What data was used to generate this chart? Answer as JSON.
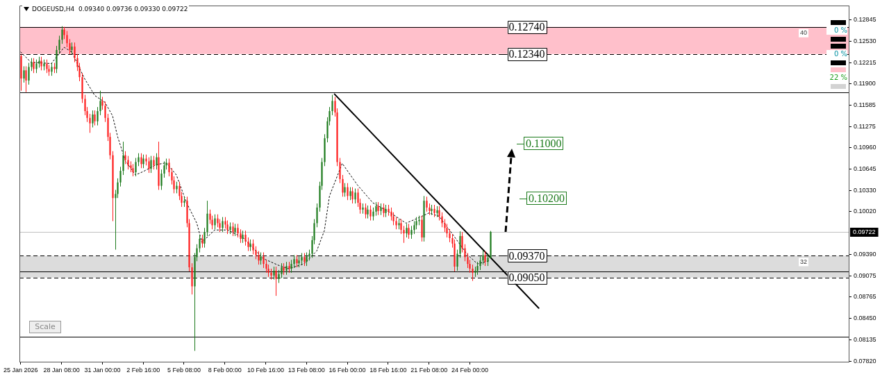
{
  "chart_data": {
    "type": "candlestick",
    "title": "DOGEUSD,H4  0.09340 0.09736 0.09330 0.09722",
    "x": [
      "2026-01-25T16:00",
      "2026-01-25T20:00",
      "2026-01-26T00:00",
      "2026-01-26T04:00",
      "2026-01-26T08:00",
      "2026-01-26T12:00",
      "2026-01-26T16:00",
      "2026-01-26T20:00",
      "2026-01-27T00:00",
      "2026-01-27T04:00",
      "2026-01-27T08:00",
      "2026-01-27T12:00",
      "2026-01-27T16:00",
      "2026-01-27T20:00",
      "2026-01-28T00:00",
      "2026-01-28T04:00",
      "2026-01-28T08:00",
      "2026-01-28T12:00",
      "2026-01-28T16:00",
      "2026-01-28T20:00",
      "2026-01-29T00:00",
      "2026-01-29T04:00",
      "2026-01-29T08:00",
      "2026-01-29T12:00",
      "2026-01-29T16:00",
      "2026-01-29T20:00",
      "2026-01-30T00:00",
      "2026-01-30T04:00",
      "2026-01-30T08:00",
      "2026-01-30T12:00",
      "2026-01-30T16:00",
      "2026-01-30T20:00",
      "2026-01-31T00:00",
      "2026-01-31T04:00",
      "2026-01-31T08:00",
      "2026-01-31T12:00",
      "2026-01-31T16:00",
      "2026-01-31T20:00",
      "2026-02-01T00:00",
      "2026-02-01T04:00",
      "2026-02-01T08:00",
      "2026-02-01T12:00",
      "2026-02-01T16:00",
      "2026-02-01T20:00",
      "2026-02-02T00:00",
      "2026-02-02T04:00",
      "2026-02-02T08:00",
      "2026-02-02T12:00",
      "2026-02-02T16:00",
      "2026-02-02T20:00",
      "2026-02-03T00:00",
      "2026-02-03T04:00",
      "2026-02-03T08:00",
      "2026-02-03T12:00",
      "2026-02-03T16:00",
      "2026-02-03T20:00",
      "2026-02-04T00:00",
      "2026-02-04T04:00",
      "2026-02-04T08:00",
      "2026-02-04T12:00",
      "2026-02-04T16:00",
      "2026-02-04T20:00",
      "2026-02-05T00:00",
      "2026-02-05T04:00",
      "2026-02-05T08:00",
      "2026-02-05T12:00",
      "2026-02-05T16:00",
      "2026-02-05T20:00",
      "2026-02-06T00:00",
      "2026-02-06T04:00",
      "2026-02-06T08:00",
      "2026-02-06T12:00",
      "2026-02-06T16:00",
      "2026-02-06T20:00",
      "2026-02-07T00:00",
      "2026-02-07T04:00",
      "2026-02-07T08:00",
      "2026-02-07T12:00",
      "2026-02-07T16:00",
      "2026-02-07T20:00",
      "2026-02-08T00:00",
      "2026-02-08T04:00",
      "2026-02-08T08:00",
      "2026-02-08T12:00",
      "2026-02-08T16:00",
      "2026-02-08T20:00",
      "2026-02-09T00:00",
      "2026-02-09T04:00",
      "2026-02-09T08:00",
      "2026-02-09T12:00",
      "2026-02-09T16:00",
      "2026-02-09T20:00",
      "2026-02-10T00:00",
      "2026-02-10T04:00",
      "2026-02-10T08:00",
      "2026-02-10T12:00",
      "2026-02-10T16:00",
      "2026-02-10T20:00",
      "2026-02-11T00:00",
      "2026-02-11T04:00",
      "2026-02-11T08:00",
      "2026-02-11T12:00",
      "2026-02-11T16:00",
      "2026-02-11T20:00",
      "2026-02-12T00:00",
      "2026-02-12T04:00",
      "2026-02-12T08:00",
      "2026-02-12T12:00",
      "2026-02-12T16:00",
      "2026-02-12T20:00",
      "2026-02-13T00:00",
      "2026-02-13T04:00",
      "2026-02-13T08:00",
      "2026-02-13T12:00",
      "2026-02-13T16:00",
      "2026-02-13T20:00",
      "2026-02-14T00:00",
      "2026-02-14T04:00",
      "2026-02-14T08:00",
      "2026-02-14T12:00",
      "2026-02-14T16:00",
      "2026-02-14T20:00",
      "2026-02-15T00:00",
      "2026-02-15T04:00",
      "2026-02-15T08:00",
      "2026-02-15T12:00",
      "2026-02-15T16:00",
      "2026-02-15T20:00",
      "2026-02-16T00:00",
      "2026-02-16T04:00",
      "2026-02-16T08:00",
      "2026-02-16T12:00",
      "2026-02-16T16:00",
      "2026-02-16T20:00",
      "2026-02-17T00:00",
      "2026-02-17T04:00",
      "2026-02-17T08:00",
      "2026-02-17T12:00",
      "2026-02-17T16:00",
      "2026-02-17T20:00",
      "2026-02-18T00:00",
      "2026-02-18T04:00",
      "2026-02-18T08:00",
      "2026-02-18T12:00",
      "2026-02-18T16:00",
      "2026-02-18T20:00",
      "2026-02-19T00:00",
      "2026-02-19T04:00",
      "2026-02-19T08:00",
      "2026-02-19T12:00",
      "2026-02-19T16:00",
      "2026-02-19T20:00",
      "2026-02-20T00:00",
      "2026-02-20T04:00",
      "2026-02-20T08:00",
      "2026-02-20T12:00",
      "2026-02-20T16:00",
      "2026-02-20T20:00",
      "2026-02-21T00:00",
      "2026-02-21T04:00",
      "2026-02-21T08:00",
      "2026-02-21T12:00",
      "2026-02-21T16:00",
      "2026-02-21T20:00",
      "2026-02-22T00:00",
      "2026-02-22T04:00",
      "2026-02-22T08:00",
      "2026-02-22T12:00",
      "2026-02-22T16:00",
      "2026-02-22T20:00",
      "2026-02-23T00:00",
      "2026-02-23T04:00",
      "2026-02-23T08:00",
      "2026-02-23T12:00",
      "2026-02-23T16:00",
      "2026-02-23T20:00",
      "2026-02-24T00:00",
      "2026-02-24T04:00",
      "2026-02-24T08:00",
      "2026-02-24T12:00",
      "2026-02-24T16:00",
      "2026-02-24T20:00",
      "2026-02-25T00:00",
      "2026-02-25T04:00",
      "2026-02-25T08:00"
    ],
    "ohlc": [
      [
        0.1231,
        0.1233,
        0.118,
        0.1198
      ],
      [
        0.1198,
        0.1216,
        0.1192,
        0.121
      ],
      [
        0.121,
        0.1216,
        0.1178,
        0.1195
      ],
      [
        0.1195,
        0.1221,
        0.1189,
        0.1215
      ],
      [
        0.1215,
        0.1228,
        0.1209,
        0.1222
      ],
      [
        0.1222,
        0.1228,
        0.1206,
        0.1212
      ],
      [
        0.1212,
        0.1226,
        0.1206,
        0.122
      ],
      [
        0.122,
        0.123,
        0.1214,
        0.1224
      ],
      [
        0.1224,
        0.123,
        0.121,
        0.1216
      ],
      [
        0.1216,
        0.1226,
        0.121,
        0.122
      ],
      [
        0.122,
        0.1226,
        0.1206,
        0.1212
      ],
      [
        0.1212,
        0.1218,
        0.1202,
        0.1208
      ],
      [
        0.1208,
        0.1221,
        0.1202,
        0.1215
      ],
      [
        0.1215,
        0.1221,
        0.1206,
        0.1212
      ],
      [
        0.1212,
        0.1246,
        0.1206,
        0.124
      ],
      [
        0.124,
        0.1261,
        0.1234,
        0.1255
      ],
      [
        0.1255,
        0.1275,
        0.1249,
        0.127
      ],
      [
        0.127,
        0.1274,
        0.1256,
        0.1262
      ],
      [
        0.1262,
        0.1268,
        0.1244,
        0.125
      ],
      [
        0.125,
        0.1256,
        0.1234,
        0.124
      ],
      [
        0.124,
        0.1251,
        0.1234,
        0.1245
      ],
      [
        0.1245,
        0.1251,
        0.1222,
        0.1228
      ],
      [
        0.1228,
        0.1234,
        0.1209,
        0.1215
      ],
      [
        0.1215,
        0.1221,
        0.1194,
        0.12
      ],
      [
        0.12,
        0.1206,
        0.1162,
        0.1168
      ],
      [
        0.1168,
        0.1174,
        0.1144,
        0.115
      ],
      [
        0.115,
        0.1156,
        0.1134,
        0.114
      ],
      [
        0.114,
        0.1146,
        0.1118,
        0.1132
      ],
      [
        0.1132,
        0.1151,
        0.1126,
        0.1145
      ],
      [
        0.1145,
        0.1151,
        0.1129,
        0.1135
      ],
      [
        0.1135,
        0.1156,
        0.1129,
        0.115
      ],
      [
        0.115,
        0.118,
        0.1144,
        0.1165
      ],
      [
        0.1165,
        0.1171,
        0.1152,
        0.1158
      ],
      [
        0.1158,
        0.1164,
        0.1134,
        0.114
      ],
      [
        0.114,
        0.1146,
        0.1106,
        0.1112
      ],
      [
        0.1112,
        0.1118,
        0.1079,
        0.1085
      ],
      [
        0.1085,
        0.1091,
        0.0988,
        0.1022
      ],
      [
        0.1022,
        0.1034,
        0.0946,
        0.1028
      ],
      [
        0.1028,
        0.1051,
        0.1022,
        0.1045
      ],
      [
        0.1045,
        0.1068,
        0.1039,
        0.1062
      ],
      [
        0.1062,
        0.1105,
        0.1056,
        0.1085
      ],
      [
        0.1085,
        0.1091,
        0.1072,
        0.1078
      ],
      [
        0.1078,
        0.1084,
        0.1064,
        0.107
      ],
      [
        0.107,
        0.1076,
        0.106,
        0.1066
      ],
      [
        0.1066,
        0.1072,
        0.1054,
        0.106
      ],
      [
        0.106,
        0.1081,
        0.1054,
        0.1075
      ],
      [
        0.1075,
        0.1088,
        0.1069,
        0.1082
      ],
      [
        0.1082,
        0.1088,
        0.1066,
        0.1072
      ],
      [
        0.1072,
        0.1086,
        0.1066,
        0.108
      ],
      [
        0.108,
        0.1086,
        0.107,
        0.1076
      ],
      [
        0.1076,
        0.1082,
        0.1059,
        0.1065
      ],
      [
        0.1065,
        0.1084,
        0.1059,
        0.1078
      ],
      [
        0.1078,
        0.1084,
        0.1064,
        0.107
      ],
      [
        0.107,
        0.1088,
        0.1064,
        0.1082
      ],
      [
        0.1082,
        0.1105,
        0.1034,
        0.104
      ],
      [
        0.104,
        0.1064,
        0.1034,
        0.1058
      ],
      [
        0.1058,
        0.1076,
        0.1052,
        0.107
      ],
      [
        0.107,
        0.108,
        0.1064,
        0.1074
      ],
      [
        0.1074,
        0.108,
        0.1054,
        0.106
      ],
      [
        0.106,
        0.1066,
        0.1042,
        0.1048
      ],
      [
        0.1048,
        0.1054,
        0.1029,
        0.1035
      ],
      [
        0.1035,
        0.1046,
        0.1029,
        0.104
      ],
      [
        0.104,
        0.1046,
        0.1019,
        0.1025
      ],
      [
        0.1025,
        0.1031,
        0.1009,
        0.1015
      ],
      [
        0.1015,
        0.1024,
        0.1009,
        0.1018
      ],
      [
        0.1018,
        0.1024,
        0.0979,
        0.0985
      ],
      [
        0.0985,
        0.0991,
        0.0914,
        0.092
      ],
      [
        0.092,
        0.0926,
        0.088,
        0.0892
      ],
      [
        0.0892,
        0.0941,
        0.0797,
        0.0935
      ],
      [
        0.0935,
        0.0954,
        0.0929,
        0.0948
      ],
      [
        0.0948,
        0.0968,
        0.0942,
        0.0962
      ],
      [
        0.0962,
        0.0968,
        0.0949,
        0.0955
      ],
      [
        0.0955,
        0.0978,
        0.0949,
        0.0972
      ],
      [
        0.0972,
        0.1018,
        0.0966,
        0.0999
      ],
      [
        0.0999,
        0.1005,
        0.0984,
        0.099
      ],
      [
        0.099,
        0.0996,
        0.0976,
        0.0982
      ],
      [
        0.0982,
        0.0998,
        0.0976,
        0.0992
      ],
      [
        0.0992,
        0.0998,
        0.0979,
        0.0985
      ],
      [
        0.0985,
        0.0991,
        0.0972,
        0.0978
      ],
      [
        0.0978,
        0.0994,
        0.0972,
        0.0988
      ],
      [
        0.0988,
        0.0994,
        0.0977,
        0.0983
      ],
      [
        0.0983,
        0.0989,
        0.0969,
        0.0975
      ],
      [
        0.0975,
        0.0986,
        0.0969,
        0.098
      ],
      [
        0.098,
        0.0986,
        0.0966,
        0.0972
      ],
      [
        0.0972,
        0.0984,
        0.0966,
        0.0978
      ],
      [
        0.0978,
        0.0984,
        0.0964,
        0.097
      ],
      [
        0.097,
        0.0976,
        0.0956,
        0.0962
      ],
      [
        0.0962,
        0.0974,
        0.0956,
        0.0968
      ],
      [
        0.0968,
        0.0974,
        0.0952,
        0.0958
      ],
      [
        0.0958,
        0.0964,
        0.0944,
        0.095
      ],
      [
        0.095,
        0.0961,
        0.0944,
        0.0955
      ],
      [
        0.0955,
        0.0961,
        0.0939,
        0.0945
      ],
      [
        0.0945,
        0.0951,
        0.0932,
        0.0938
      ],
      [
        0.0938,
        0.0944,
        0.0924,
        0.093
      ],
      [
        0.093,
        0.0942,
        0.0924,
        0.0936
      ],
      [
        0.0936,
        0.0942,
        0.0919,
        0.0925
      ],
      [
        0.0925,
        0.0931,
        0.0912,
        0.0918
      ],
      [
        0.0918,
        0.0924,
        0.0906,
        0.0912
      ],
      [
        0.0912,
        0.0918,
        0.0902,
        0.0908
      ],
      [
        0.0908,
        0.0921,
        0.0902,
        0.0915
      ],
      [
        0.0915,
        0.0921,
        0.0878,
        0.0903
      ],
      [
        0.0903,
        0.0916,
        0.0897,
        0.091
      ],
      [
        0.091,
        0.0926,
        0.0904,
        0.092
      ],
      [
        0.092,
        0.0926,
        0.0909,
        0.0915
      ],
      [
        0.0915,
        0.0928,
        0.0909,
        0.0922
      ],
      [
        0.0922,
        0.0928,
        0.0912,
        0.0918
      ],
      [
        0.0918,
        0.0931,
        0.0912,
        0.0925
      ],
      [
        0.0925,
        0.0938,
        0.0919,
        0.0932
      ],
      [
        0.0932,
        0.0938,
        0.092,
        0.0926
      ],
      [
        0.0926,
        0.0936,
        0.092,
        0.093
      ],
      [
        0.093,
        0.0941,
        0.0924,
        0.0935
      ],
      [
        0.0935,
        0.0941,
        0.0922,
        0.0928
      ],
      [
        0.0928,
        0.0942,
        0.0922,
        0.0936
      ],
      [
        0.0936,
        0.0946,
        0.093,
        0.094
      ],
      [
        0.094,
        0.0966,
        0.0934,
        0.096
      ],
      [
        0.096,
        0.0991,
        0.0954,
        0.0985
      ],
      [
        0.0985,
        0.1014,
        0.0979,
        0.1008
      ],
      [
        0.1008,
        0.1046,
        0.1002,
        0.104
      ],
      [
        0.104,
        0.1081,
        0.1034,
        0.1075
      ],
      [
        0.1075,
        0.1116,
        0.1069,
        0.111
      ],
      [
        0.111,
        0.1141,
        0.1104,
        0.1135
      ],
      [
        0.1135,
        0.1156,
        0.1129,
        0.115
      ],
      [
        0.115,
        0.1174,
        0.1144,
        0.1165
      ],
      [
        0.1165,
        0.1171,
        0.1142,
        0.1148
      ],
      [
        0.1148,
        0.1154,
        0.1069,
        0.1075
      ],
      [
        0.1075,
        0.1081,
        0.1044,
        0.105
      ],
      [
        0.105,
        0.1056,
        0.1024,
        0.103
      ],
      [
        0.103,
        0.1044,
        0.1024,
        0.1038
      ],
      [
        0.1038,
        0.1044,
        0.1019,
        0.1025
      ],
      [
        0.1025,
        0.1038,
        0.1019,
        0.1032
      ],
      [
        0.1032,
        0.1038,
        0.1014,
        0.102
      ],
      [
        0.102,
        0.1036,
        0.1014,
        0.103
      ],
      [
        0.103,
        0.1036,
        0.1009,
        0.1015
      ],
      [
        0.1015,
        0.1021,
        0.0999,
        0.1005
      ],
      [
        0.1005,
        0.1014,
        0.0999,
        0.1008
      ],
      [
        0.1008,
        0.1014,
        0.0992,
        0.0998
      ],
      [
        0.0998,
        0.1011,
        0.0992,
        0.1005
      ],
      [
        0.1005,
        0.1011,
        0.0989,
        0.0995
      ],
      [
        0.0995,
        0.1008,
        0.0989,
        0.1002
      ],
      [
        0.1002,
        0.1016,
        0.0996,
        0.101
      ],
      [
        0.101,
        0.1016,
        0.0997,
        0.1003
      ],
      [
        0.1003,
        0.1014,
        0.0997,
        0.1008
      ],
      [
        0.1008,
        0.1014,
        0.0994,
        0.1
      ],
      [
        0.1,
        0.1012,
        0.0994,
        0.1006
      ],
      [
        0.1006,
        0.1012,
        0.0996,
        0.1002
      ],
      [
        0.1002,
        0.1008,
        0.0989,
        0.0995
      ],
      [
        0.0995,
        0.1001,
        0.0982,
        0.0988
      ],
      [
        0.0988,
        0.0994,
        0.0976,
        0.0982
      ],
      [
        0.0982,
        0.0991,
        0.0976,
        0.0985
      ],
      [
        0.0985,
        0.0991,
        0.0969,
        0.0975
      ],
      [
        0.0975,
        0.0981,
        0.0956,
        0.097
      ],
      [
        0.097,
        0.0984,
        0.0964,
        0.0978
      ],
      [
        0.0978,
        0.0984,
        0.0962,
        0.0968
      ],
      [
        0.0968,
        0.0981,
        0.0962,
        0.0975
      ],
      [
        0.0975,
        0.0988,
        0.0969,
        0.0982
      ],
      [
        0.0982,
        0.0994,
        0.0976,
        0.0988
      ],
      [
        0.0988,
        0.0996,
        0.0982,
        0.099
      ],
      [
        0.099,
        0.0996,
        0.0958,
        0.0964
      ],
      [
        0.0964,
        0.1025,
        0.0958,
        0.1018
      ],
      [
        0.1018,
        0.1024,
        0.1002,
        0.1008
      ],
      [
        0.1008,
        0.1014,
        0.0997,
        0.1003
      ],
      [
        0.1003,
        0.1012,
        0.0997,
        0.1006
      ],
      [
        0.1006,
        0.1012,
        0.0994,
        0.1
      ],
      [
        0.1,
        0.101,
        0.0994,
        0.1004
      ],
      [
        0.1004,
        0.101,
        0.0989,
        0.0995
      ],
      [
        0.0995,
        0.1001,
        0.0979,
        0.0985
      ],
      [
        0.0985,
        0.0991,
        0.0972,
        0.0978
      ],
      [
        0.0978,
        0.0984,
        0.0964,
        0.097
      ],
      [
        0.097,
        0.0976,
        0.0957,
        0.0963
      ],
      [
        0.0963,
        0.0969,
        0.0949,
        0.0955
      ],
      [
        0.0955,
        0.0961,
        0.0914,
        0.0921
      ],
      [
        0.0921,
        0.0946,
        0.0915,
        0.094
      ],
      [
        0.094,
        0.0973,
        0.0934,
        0.0966
      ],
      [
        0.0966,
        0.0972,
        0.0942,
        0.0948
      ],
      [
        0.0948,
        0.0954,
        0.0929,
        0.0935
      ],
      [
        0.0935,
        0.0941,
        0.0919,
        0.0925
      ],
      [
        0.0925,
        0.0931,
        0.0912,
        0.0918
      ],
      [
        0.0918,
        0.0924,
        0.09,
        0.0912
      ],
      [
        0.0912,
        0.0921,
        0.0906,
        0.0915
      ],
      [
        0.0915,
        0.0928,
        0.0909,
        0.0922
      ],
      [
        0.0922,
        0.0936,
        0.0916,
        0.093
      ],
      [
        0.093,
        0.0945,
        0.0924,
        0.0938
      ],
      [
        0.0938,
        0.0944,
        0.0922,
        0.0928
      ],
      [
        0.0928,
        0.094,
        0.0922,
        0.0934
      ],
      [
        0.0934,
        0.09736,
        0.0933,
        0.09722
      ]
    ],
    "series": [
      {
        "type": "line",
        "color": "#000000",
        "line_style": "dotted",
        "x": [
          "2026-01-25T16:00",
          "2026-01-26T08:00",
          "2026-01-27T16:00",
          "2026-01-28T12:00",
          "2026-01-29T00:00",
          "2026-01-29T20:00",
          "2026-01-30T12:00",
          "2026-01-31T04:00",
          "2026-01-31T16:00",
          "2026-02-01T00:00",
          "2026-02-01T12:00",
          "2026-02-02T04:00",
          "2026-02-02T16:00",
          "2026-02-03T12:00",
          "2026-02-04T04:00",
          "2026-02-04T20:00",
          "2026-02-05T12:00",
          "2026-02-06T04:00",
          "2026-02-06T12:00",
          "2026-02-06T20:00",
          "2026-02-07T08:00",
          "2026-02-08T04:00",
          "2026-02-09T04:00",
          "2026-02-09T20:00",
          "2026-02-10T12:00",
          "2026-02-11T12:00",
          "2026-02-12T04:00",
          "2026-02-13T04:00",
          "2026-02-14T00:00",
          "2026-02-14T12:00",
          "2026-02-14T20:00",
          "2026-02-15T16:00",
          "2026-02-16T16:00",
          "2026-02-17T16:00",
          "2026-02-18T20:00",
          "2026-02-19T20:00",
          "2026-02-20T16:00",
          "2026-02-21T08:00",
          "2026-02-22T00:00",
          "2026-02-22T20:00",
          "2026-02-23T20:00",
          "2026-02-24T12:00",
          "2026-02-25T04:00",
          "2026-02-25T08:00"
        ],
        "values": [
          0.1237,
          0.1222,
          0.122,
          0.1244,
          0.1237,
          0.1198,
          0.1173,
          0.1163,
          0.1143,
          0.1112,
          0.1077,
          0.1056,
          0.1061,
          0.1071,
          0.1074,
          0.1056,
          0.1015,
          0.0985,
          0.0957,
          0.0964,
          0.0975,
          0.0975,
          0.0964,
          0.0949,
          0.0933,
          0.0923,
          0.0918,
          0.0925,
          0.0944,
          0.0974,
          0.1025,
          0.1073,
          0.1041,
          0.1015,
          0.1,
          0.0985,
          0.0993,
          0.1,
          0.0995,
          0.097,
          0.0939,
          0.0925,
          0.0929,
          0.0931
        ]
      },
      {
        "type": "line",
        "color": "#000000",
        "line_style": "solid",
        "x": [
          "2026-02-15T04:00",
          "2026-02-28T12:00"
        ],
        "values": [
          0.1175,
          0.086
        ]
      }
    ],
    "ref_lines": [
      {
        "axis": "y",
        "value": 0.1274,
        "color": "#000000",
        "line_style": "solid"
      },
      {
        "axis": "y",
        "value": 0.1234,
        "color": "#000000",
        "line_style": "dashed"
      },
      {
        "axis": "y",
        "value": 0.11776,
        "color": "#000000",
        "line_style": "solid"
      },
      {
        "axis": "y",
        "value": 0.0937,
        "color": "#000000",
        "line_style": "dashed"
      },
      {
        "axis": "y",
        "value": 0.09144,
        "color": "#000000",
        "line_style": "solid"
      },
      {
        "axis": "y",
        "value": 0.0905,
        "color": "#000000",
        "line_style": "dashed"
      },
      {
        "axis": "y",
        "value": 0.08179,
        "color": "#000000",
        "line_style": "solid"
      },
      {
        "axis": "y",
        "value": 0.09722,
        "label": "0.09722",
        "color": "#c0c0c0",
        "line_style": "solid"
      }
    ],
    "bands": [
      {
        "axis": "y",
        "from": 0.1234,
        "to": 0.1274,
        "label": "40",
        "color": "#ffc0cb"
      },
      {
        "axis": "y",
        "from": 0.0905,
        "to": 0.0937,
        "label": "32",
        "color": "#dcdcdc"
      }
    ],
    "annotations": [
      "Scale",
      "0 %",
      "0 %",
      "22 %",
      {
        "text": "0.12740",
        "x": "2026-02-26T00:00",
        "y": 0.1274
      },
      {
        "text": "0.12340",
        "x": "2026-02-26T00:00",
        "y": 0.1234
      },
      "0.11000",
      "0.10200",
      {
        "text": "0.09370",
        "x": "2026-02-26T00:00",
        "y": 0.0937
      },
      {
        "text": "0.09050",
        "x": "2026-02-26T00:00",
        "y": 0.0905
      }
    ],
    "xlim": [
      "2026-01-25T14:00",
      "2026-03-20T18:00"
    ],
    "xticks": [
      {
        "value": "2026-01-25T16:00",
        "label": "25 Jan 2026"
      },
      {
        "value": "2026-01-28T08:00",
        "label": "28 Jan 08:00"
      },
      {
        "value": "2026-01-31T00:00",
        "label": "31 Jan 00:00"
      },
      {
        "value": "2026-02-02T16:00",
        "label": "2 Feb 16:00"
      },
      {
        "value": "2026-02-05T08:00",
        "label": "5 Feb 08:00"
      },
      {
        "value": "2026-02-08T00:00",
        "label": "8 Feb 00:00"
      },
      {
        "value": "2026-02-10T16:00",
        "label": "10 Feb 16:00"
      },
      {
        "value": "2026-02-13T08:00",
        "label": "13 Feb 08:00"
      },
      {
        "value": "2026-02-16T00:00",
        "label": "16 Feb 00:00"
      },
      {
        "value": "2026-02-18T16:00",
        "label": "18 Feb 16:00"
      },
      {
        "value": "2026-02-21T08:00",
        "label": "21 Feb 08:00"
      },
      {
        "value": "2026-02-24T00:00",
        "label": "24 Feb 00:00"
      }
    ],
    "ylim": [
      0.0781,
      0.1305
    ],
    "yticks": [
      0.12845,
      {
        "value": 0.1253,
        "label": "0.12530"
      },
      0.12215,
      {
        "value": 0.119,
        "label": "0.11900"
      },
      0.11585,
      0.11275,
      {
        "value": 0.1096,
        "label": "0.10960"
      },
      0.10645,
      {
        "value": 0.1033,
        "label": "0.10330"
      },
      {
        "value": 0.1002,
        "label": "0.10020"
      },
      {
        "value": 0.0939,
        "label": "0.09390"
      },
      0.09075,
      0.08765,
      {
        "value": 0.0845,
        "label": "0.08450"
      },
      0.08135,
      {
        "value": 0.0782,
        "label": "0.07820"
      }
    ],
    "grid": false,
    "legend": false
  }
}
